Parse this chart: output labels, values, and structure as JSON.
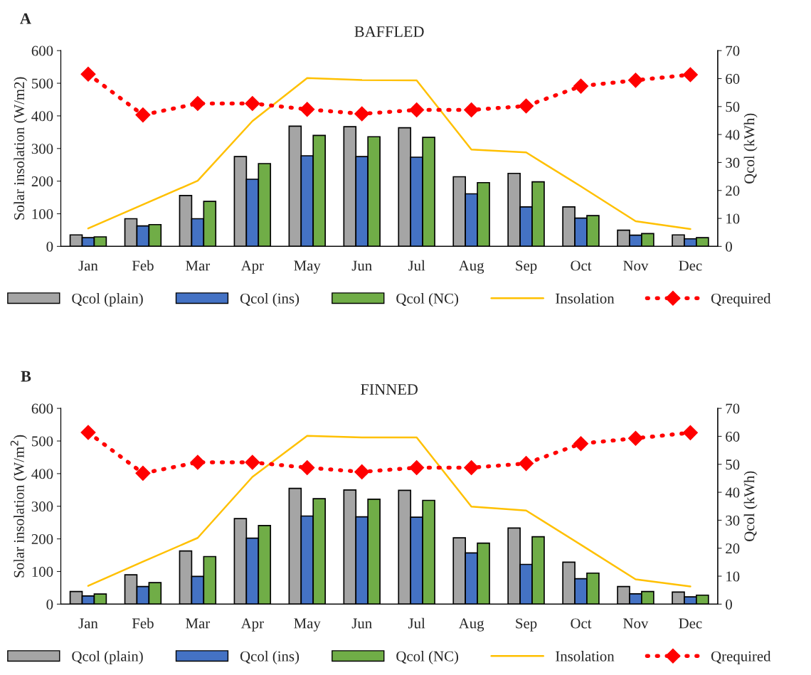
{
  "chart_data": [
    {
      "type": "bar",
      "title": "BAFFLED",
      "ylabel": "Solar insolation (W/m2)",
      "y2label": "Qcol (kWh)",
      "annotations": [
        "A"
      ],
      "legend": "bottom",
      "categories": [
        "Jan",
        "Feb",
        "Mar",
        "Apr",
        "May",
        "Jun",
        "Jul",
        "Aug",
        "Sep",
        "Oct",
        "Nov",
        "Dec"
      ],
      "ylim": [
        0,
        600
      ],
      "yticks": [
        0,
        100,
        200,
        300,
        400,
        500,
        600
      ],
      "y2lim": [
        0,
        70
      ],
      "y2ticks": [
        0,
        10,
        20,
        30,
        40,
        50,
        60,
        70
      ],
      "series": [
        {
          "name": "Qcol (plain)",
          "axis": "y2",
          "color": "#a5a5a5",
          "values": [
            4.1,
            9.9,
            18.2,
            32.1,
            43.0,
            42.8,
            42.4,
            24.9,
            26.1,
            14.1,
            5.8,
            4.1
          ]
        },
        {
          "name": "Qcol (ins)",
          "axis": "y2",
          "color": "#4472c4",
          "values": [
            3.1,
            7.3,
            9.9,
            24.0,
            32.4,
            32.1,
            31.9,
            18.8,
            14.1,
            10.1,
            4.0,
            2.7
          ]
        },
        {
          "name": "Qcol (NC)",
          "axis": "y2",
          "color": "#70ad47",
          "values": [
            3.4,
            7.8,
            16.1,
            29.6,
            39.7,
            39.2,
            39.0,
            22.8,
            23.1,
            11.0,
            4.6,
            3.1
          ]
        },
        {
          "name": "Insolation",
          "type": "line",
          "color": "#ffc000",
          "marker": "none",
          "line_style": "solid",
          "values": [
            55,
            128,
            201,
            384,
            516,
            510,
            509,
            297,
            288,
            184,
            77,
            53
          ]
        },
        {
          "name": "Qrequired",
          "type": "line",
          "axis": "y2",
          "color": "#ff0000",
          "marker": "diamond",
          "line_style": "dotted",
          "values": [
            61.6,
            47.0,
            51.1,
            51.1,
            49.0,
            47.4,
            48.8,
            48.8,
            50.2,
            57.3,
            59.4,
            61.4
          ]
        }
      ]
    },
    {
      "type": "bar",
      "title": "FINNED",
      "ylabel": "Solar insolation (W/m$^{2}$)",
      "y2label": "Qcol (kWh)",
      "annotations": [
        "B"
      ],
      "legend": "bottom",
      "categories": [
        "Jan",
        "Feb",
        "Mar",
        "Apr",
        "May",
        "Jun",
        "Jul",
        "Aug",
        "Sep",
        "Oct",
        "Nov",
        "Dec"
      ],
      "ylim": [
        0,
        600
      ],
      "yticks": [
        0,
        100,
        200,
        300,
        400,
        500,
        600
      ],
      "y2lim": [
        0,
        70
      ],
      "y2ticks": [
        0,
        10,
        20,
        30,
        40,
        50,
        60,
        70
      ],
      "series": [
        {
          "name": "Qcol (plain)",
          "axis": "y2",
          "color": "#a5a5a5",
          "values": [
            4.5,
            10.5,
            19.0,
            30.6,
            41.4,
            40.8,
            40.7,
            23.7,
            27.2,
            15.0,
            6.3,
            4.3
          ]
        },
        {
          "name": "Qcol (ins)",
          "axis": "y2",
          "color": "#4472c4",
          "values": [
            2.9,
            6.3,
            9.9,
            23.6,
            31.5,
            31.2,
            31.1,
            18.3,
            14.2,
            9.1,
            3.7,
            2.6
          ]
        },
        {
          "name": "Qcol (NC)",
          "axis": "y2",
          "color": "#70ad47",
          "values": [
            3.6,
            7.7,
            17.0,
            28.1,
            37.7,
            37.5,
            37.1,
            21.8,
            24.1,
            11.1,
            4.5,
            3.2
          ]
        },
        {
          "name": "Insolation",
          "type": "line",
          "color": "#ffc000",
          "marker": "none",
          "line_style": "solid",
          "values": [
            56,
            130,
            203,
            390,
            516,
            511,
            511,
            299,
            287,
            182,
            76,
            54
          ]
        },
        {
          "name": "Qrequired",
          "type": "line",
          "axis": "y2",
          "color": "#ff0000",
          "marker": "diamond",
          "line_style": "dotted",
          "values": [
            61.4,
            46.8,
            50.7,
            50.7,
            48.8,
            47.3,
            48.8,
            48.8,
            50.3,
            57.4,
            59.3,
            61.3
          ]
        }
      ]
    }
  ]
}
